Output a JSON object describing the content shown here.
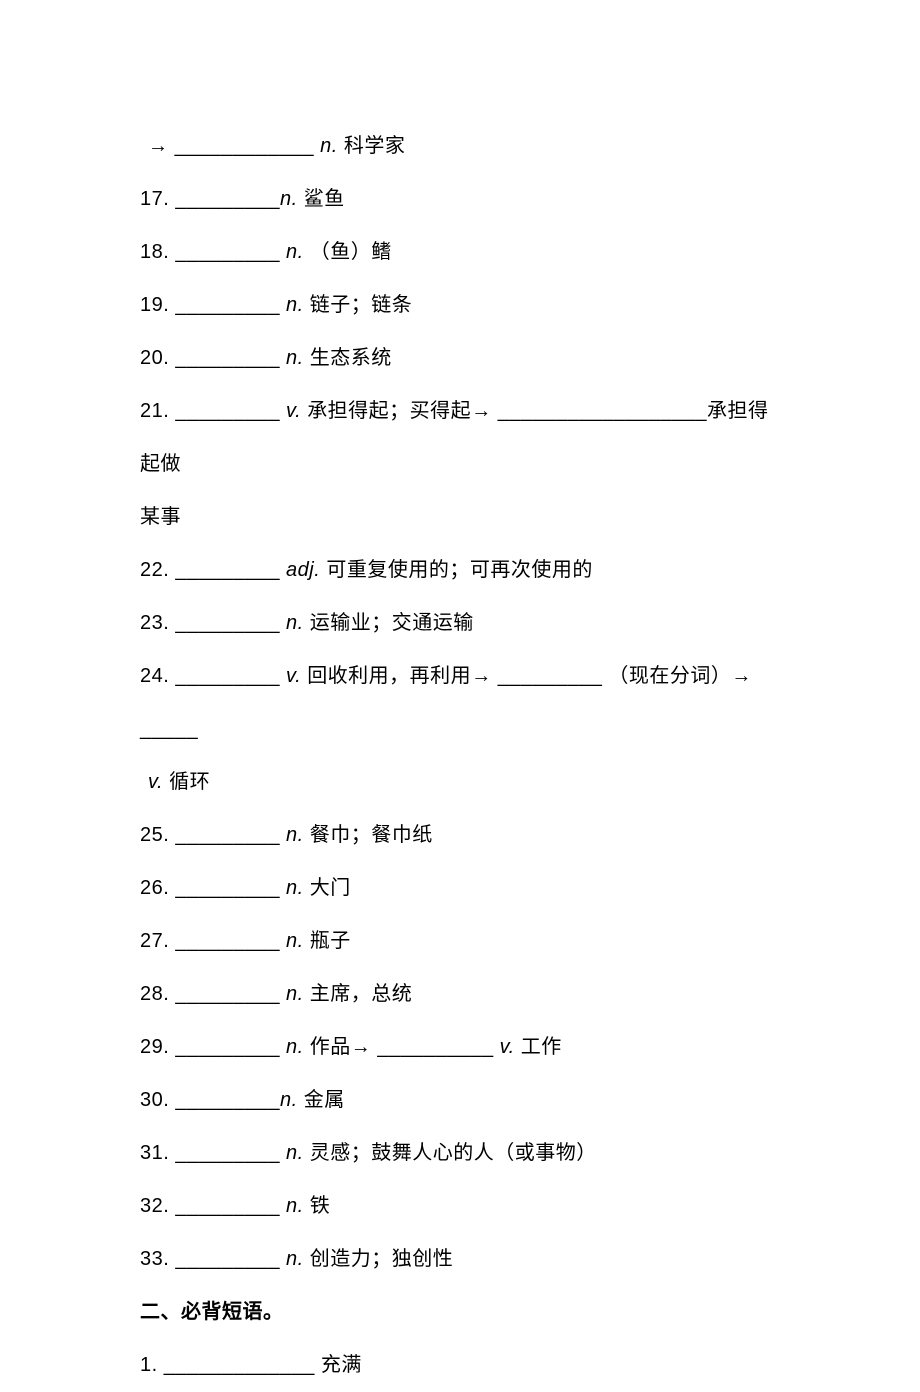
{
  "lines": {
    "l1_arrow": "→",
    "l1_blank": "____________",
    "l1_pos": "n.",
    "l1_def": "科学家",
    "l17_num": "17.",
    "l17_blank": "_________",
    "l17_pos": "n.",
    "l17_def": "鲨鱼",
    "l18_num": "18.",
    "l18_blank": "_________",
    "l18_pos": "n.",
    "l18_def": "（鱼）鳍",
    "l19_num": "19.",
    "l19_blank": "_________",
    "l19_pos": "n.",
    "l19_def": "链子；链条",
    "l20_num": "20.",
    "l20_blank": "_________",
    "l20_pos": "n.",
    "l20_def": "生态系统",
    "l21_num": "21.",
    "l21_blank": "_________",
    "l21_pos": "v.",
    "l21_def1": "承担得起；买得起",
    "l21_arrow": "→",
    "l21_blank2": "__________________",
    "l21_def2": "承担得起做",
    "l21_cont": "某事",
    "l22_num": "22.",
    "l22_blank": "_________",
    "l22_pos": "adj.",
    "l22_def": "可重复使用的；可再次使用的",
    "l23_num": "23.",
    "l23_blank": "_________",
    "l23_pos": "n.",
    "l23_def": "运输业；交通运输",
    "l24_num": "24.",
    "l24_blank": "_________",
    "l24_pos": "v.",
    "l24_def1": "回收利用，再利用",
    "l24_arrow": "→",
    "l24_blank2": "_________",
    "l24_def2": "（现在分词）",
    "l24_arrow2": "→",
    "l24_blank3": "_____",
    "l24_pos2": "v.",
    "l24_def3": "循环",
    "l25_num": "25.",
    "l25_blank": "_________",
    "l25_pos": "n.",
    "l25_def": "餐巾；餐巾纸",
    "l26_num": "26.",
    "l26_blank": "_________",
    "l26_pos": "n.",
    "l26_def": "大门",
    "l27_num": "27.",
    "l27_blank": "_________",
    "l27_pos": "n.",
    "l27_def": "瓶子",
    "l28_num": "28.",
    "l28_blank": "_________",
    "l28_pos": "n.",
    "l28_def": "主席，总统",
    "l29_num": "29.",
    "l29_blank": "_________",
    "l29_pos": "n.",
    "l29_def1": "作品",
    "l29_arrow": "→",
    "l29_blank2": "__________",
    "l29_pos2": "v.",
    "l29_def2": "工作",
    "l30_num": "30.",
    "l30_blank": "_________",
    "l30_pos": "n.",
    "l30_def": "金属",
    "l31_num": "31.",
    "l31_blank": "_________",
    "l31_pos": "n.",
    "l31_def": "灵感；鼓舞人心的人（或事物）",
    "l32_num": "32.",
    "l32_blank": "_________",
    "l32_pos": "n.",
    "l32_def": "铁",
    "l33_num": "33.",
    "l33_blank": "_________",
    "l33_pos": "n.",
    "l33_def": "创造力；独创性",
    "section2": "二、必背短语。",
    "p1_num": "1.",
    "p1_blank": "_____________",
    "p1_def": "充满"
  }
}
